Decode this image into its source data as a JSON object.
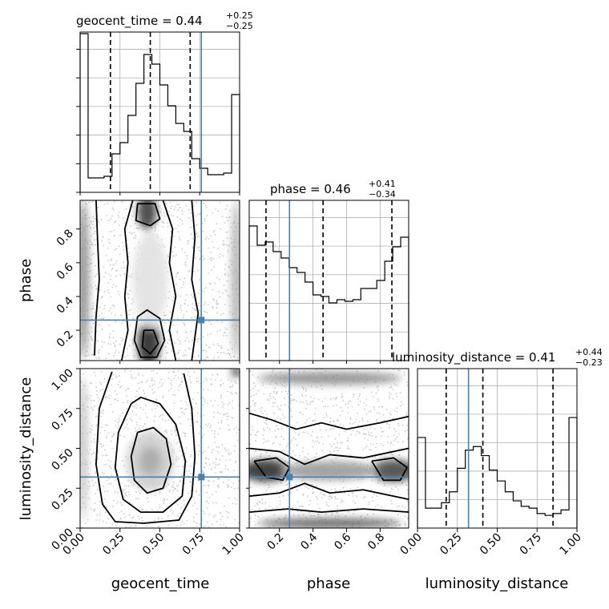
{
  "chart_data": {
    "type": "corner",
    "parameters": [
      "geocent_time",
      "phase",
      "luminosity_distance"
    ],
    "titles": [
      {
        "label": "geocent_time = 0.44",
        "plus": "+0.25",
        "minus": "−0.25"
      },
      {
        "label": "phase = 0.46",
        "plus": "+0.41",
        "minus": "−0.34"
      },
      {
        "label": "luminosity_distance = 0.41",
        "plus": "+0.44",
        "minus": "−0.23"
      }
    ],
    "ranges": [
      [
        0,
        1
      ],
      [
        0.02,
        0.97
      ],
      [
        0,
        1
      ]
    ],
    "ticks": {
      "geocent_time": [
        "0.00",
        "0.25",
        "0.50",
        "0.75",
        "1.00"
      ],
      "phase": [
        "0.2",
        "0.4",
        "0.6",
        "0.8"
      ],
      "luminosity_distance": [
        "0.00",
        "0.25",
        "0.50",
        "0.75",
        "1.00"
      ]
    },
    "truths": {
      "geocent_time": 0.76,
      "phase": 0.26,
      "luminosity_distance": 0.32
    },
    "quantiles": {
      "geocent_time": [
        0.19,
        0.44,
        0.69
      ],
      "phase": [
        0.12,
        0.46,
        0.87
      ],
      "luminosity_distance": [
        0.18,
        0.41,
        0.85
      ]
    },
    "histograms": {
      "geocent_time": {
        "edges": [
          0.0,
          0.05,
          0.1,
          0.15,
          0.2,
          0.25,
          0.3,
          0.35,
          0.4,
          0.45,
          0.5,
          0.55,
          0.6,
          0.65,
          0.7,
          0.75,
          0.8,
          0.85,
          0.9,
          0.95,
          1.0
        ],
        "counts": [
          0.99,
          0.09,
          0.09,
          0.1,
          0.24,
          0.31,
          0.48,
          0.68,
          0.86,
          0.8,
          0.67,
          0.54,
          0.43,
          0.38,
          0.21,
          0.15,
          0.11,
          0.11,
          0.12,
          0.61
        ]
      },
      "phase": {
        "edges": [
          0.02,
          0.0675,
          0.115,
          0.1625,
          0.21,
          0.2575,
          0.305,
          0.3525,
          0.4,
          0.4475,
          0.495,
          0.5425,
          0.59,
          0.6375,
          0.685,
          0.7325,
          0.78,
          0.8275,
          0.875,
          0.9225,
          0.97
        ],
        "counts": [
          0.84,
          0.72,
          0.74,
          0.68,
          0.64,
          0.58,
          0.55,
          0.49,
          0.41,
          0.4,
          0.36,
          0.38,
          0.37,
          0.38,
          0.45,
          0.45,
          0.5,
          0.62,
          0.71,
          0.77
        ]
      },
      "luminosity_distance": {
        "edges": [
          0.0,
          0.05,
          0.1,
          0.15,
          0.2,
          0.25,
          0.3,
          0.35,
          0.4,
          0.45,
          0.5,
          0.55,
          0.6,
          0.65,
          0.7,
          0.75,
          0.8,
          0.85,
          0.9,
          0.95,
          1.0
        ],
        "counts": [
          0.5,
          0.11,
          0.11,
          0.14,
          0.2,
          0.33,
          0.43,
          0.45,
          0.4,
          0.32,
          0.26,
          0.2,
          0.15,
          0.12,
          0.11,
          0.08,
          0.07,
          0.08,
          0.1,
          0.61
        ]
      }
    },
    "histogram_ymax": [
      1.0,
      1.0,
      0.88
    ],
    "panels_2d": [
      {
        "x": "geocent_time",
        "y": "phase",
        "contours": [
          [
            [
              0.1,
              0.97
            ],
            [
              0.11,
              0.72
            ],
            [
              0.12,
              0.5
            ],
            [
              0.1,
              0.28
            ],
            [
              0.09,
              0.05
            ]
          ],
          [
            [
              0.33,
              0.97
            ],
            [
              0.28,
              0.8
            ],
            [
              0.3,
              0.6
            ],
            [
              0.28,
              0.4
            ],
            [
              0.3,
              0.2
            ],
            [
              0.26,
              0.02
            ]
          ],
          [
            [
              0.52,
              0.97
            ],
            [
              0.58,
              0.8
            ],
            [
              0.56,
              0.6
            ],
            [
              0.6,
              0.4
            ],
            [
              0.56,
              0.2
            ],
            [
              0.6,
              0.02
            ]
          ],
          [
            [
              0.7,
              0.97
            ],
            [
              0.72,
              0.75
            ],
            [
              0.7,
              0.5
            ],
            [
              0.74,
              0.3
            ],
            [
              0.7,
              0.02
            ]
          ],
          [
            [
              0.36,
              0.95
            ],
            [
              0.35,
              0.85
            ],
            [
              0.44,
              0.82
            ],
            [
              0.5,
              0.86
            ],
            [
              0.47,
              0.95
            ],
            [
              0.36,
              0.95
            ]
          ],
          [
            [
              0.36,
              0.28
            ],
            [
              0.34,
              0.14
            ],
            [
              0.38,
              0.04
            ],
            [
              0.48,
              0.04
            ],
            [
              0.53,
              0.14
            ],
            [
              0.5,
              0.27
            ],
            [
              0.42,
              0.32
            ],
            [
              0.36,
              0.28
            ]
          ],
          [
            [
              0.4,
              0.2
            ],
            [
              0.39,
              0.1
            ],
            [
              0.44,
              0.06
            ],
            [
              0.49,
              0.12
            ],
            [
              0.46,
              0.2
            ],
            [
              0.4,
              0.2
            ]
          ]
        ]
      },
      {
        "x": "geocent_time",
        "y": "luminosity_distance",
        "contours": [
          [
            [
              0.2,
              0.98
            ],
            [
              0.12,
              0.75
            ],
            [
              0.1,
              0.4
            ],
            [
              0.14,
              0.15
            ],
            [
              0.22,
              0.04
            ],
            [
              0.4,
              0.03
            ],
            [
              0.62,
              0.05
            ],
            [
              0.7,
              0.2
            ],
            [
              0.72,
              0.45
            ],
            [
              0.7,
              0.75
            ],
            [
              0.65,
              0.97
            ]
          ],
          [
            [
              0.32,
              0.78
            ],
            [
              0.24,
              0.6
            ],
            [
              0.22,
              0.38
            ],
            [
              0.27,
              0.18
            ],
            [
              0.38,
              0.1
            ],
            [
              0.52,
              0.1
            ],
            [
              0.64,
              0.2
            ],
            [
              0.66,
              0.42
            ],
            [
              0.6,
              0.65
            ],
            [
              0.5,
              0.78
            ],
            [
              0.38,
              0.82
            ],
            [
              0.32,
              0.78
            ]
          ],
          [
            [
              0.36,
              0.6
            ],
            [
              0.32,
              0.45
            ],
            [
              0.34,
              0.3
            ],
            [
              0.42,
              0.22
            ],
            [
              0.52,
              0.25
            ],
            [
              0.57,
              0.4
            ],
            [
              0.54,
              0.56
            ],
            [
              0.46,
              0.63
            ],
            [
              0.36,
              0.6
            ]
          ]
        ]
      },
      {
        "x": "phase",
        "y": "luminosity_distance",
        "contours": [
          [
            [
              0.02,
              0.72
            ],
            [
              0.15,
              0.68
            ],
            [
              0.3,
              0.62
            ],
            [
              0.45,
              0.66
            ],
            [
              0.6,
              0.62
            ],
            [
              0.8,
              0.66
            ],
            [
              0.97,
              0.7
            ]
          ],
          [
            [
              0.02,
              0.5
            ],
            [
              0.2,
              0.48
            ],
            [
              0.35,
              0.4
            ],
            [
              0.5,
              0.46
            ],
            [
              0.7,
              0.44
            ],
            [
              0.97,
              0.5
            ]
          ],
          [
            [
              0.02,
              0.2
            ],
            [
              0.2,
              0.22
            ],
            [
              0.35,
              0.28
            ],
            [
              0.5,
              0.22
            ],
            [
              0.7,
              0.24
            ],
            [
              0.97,
              0.18
            ]
          ],
          [
            [
              0.02,
              0.1
            ],
            [
              0.25,
              0.12
            ],
            [
              0.45,
              0.1
            ],
            [
              0.7,
              0.12
            ],
            [
              0.97,
              0.1
            ]
          ],
          [
            [
              0.05,
              0.42
            ],
            [
              0.12,
              0.32
            ],
            [
              0.22,
              0.3
            ],
            [
              0.26,
              0.38
            ],
            [
              0.18,
              0.44
            ],
            [
              0.05,
              0.42
            ]
          ],
          [
            [
              0.75,
              0.42
            ],
            [
              0.82,
              0.3
            ],
            [
              0.92,
              0.3
            ],
            [
              0.96,
              0.38
            ],
            [
              0.88,
              0.44
            ],
            [
              0.75,
              0.42
            ]
          ]
        ]
      }
    ]
  }
}
